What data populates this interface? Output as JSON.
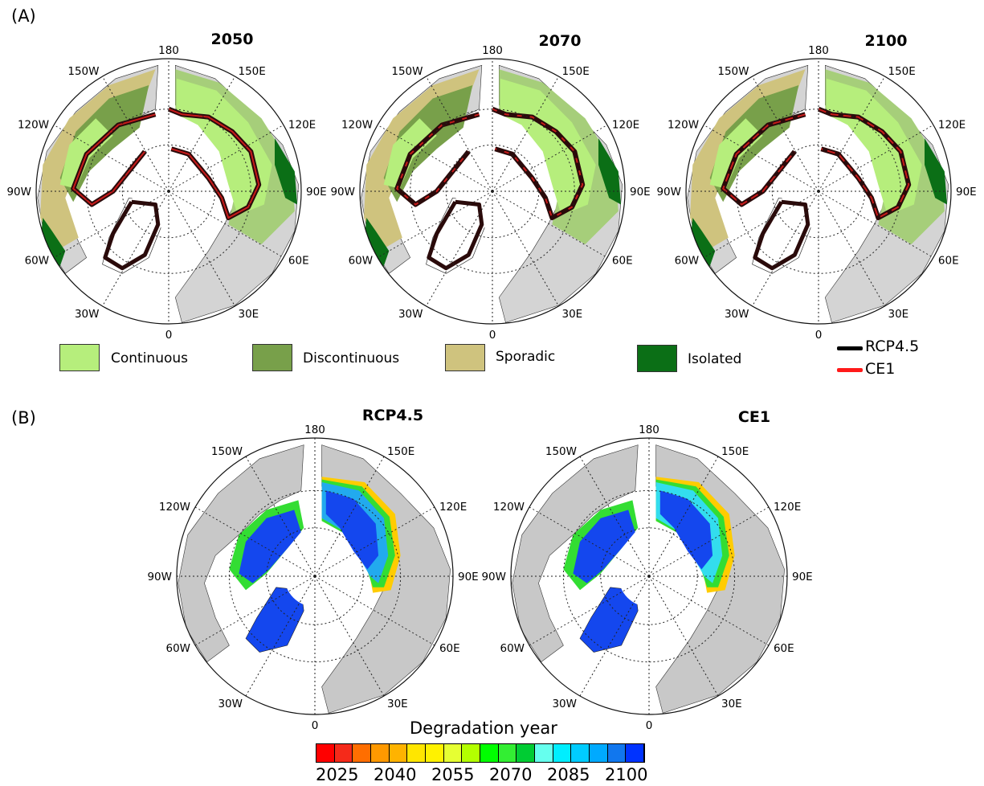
{
  "panel_a": {
    "label": "(A)",
    "maps": [
      {
        "title": "2050"
      },
      {
        "title": "2070"
      },
      {
        "title": "2100"
      }
    ],
    "legend": [
      {
        "label": "Continuous",
        "color": "#b6ee7c"
      },
      {
        "label": "Discontinuous",
        "color": "#78a04a"
      },
      {
        "label": "Sporadic",
        "color": "#cfc37e"
      },
      {
        "label": "Isolated",
        "color": "#0b6f16"
      }
    ],
    "line_legend": [
      {
        "label": "RCP4.5",
        "color": "#000000"
      },
      {
        "label": "CE1",
        "color": "#ff1a1a"
      }
    ]
  },
  "panel_b": {
    "label": "(B)",
    "maps": [
      {
        "title": "RCP4.5"
      },
      {
        "title": "CE1"
      }
    ],
    "colorbar": {
      "title": "Degradation year",
      "ticks": [
        "2025",
        "2040",
        "2055",
        "2070",
        "2085",
        "2100"
      ],
      "colors": [
        "#ff0000",
        "#f52a1a",
        "#ff6e00",
        "#ff9900",
        "#ffb300",
        "#ffe600",
        "#fff200",
        "#e6ff33",
        "#b3ff00",
        "#00ff00",
        "#33ee33",
        "#00cc33",
        "#66ffee",
        "#00eeff",
        "#00ccff",
        "#00aaff",
        "#1177ee",
        "#0033ff"
      ]
    }
  },
  "graticule_labels": {
    "top": "180",
    "bottom": "0",
    "left": "90W",
    "right": "90E",
    "upper_left_1": "150W",
    "upper_left_2": "120W",
    "lower_left_1": "60W",
    "lower_left_2": "30W",
    "upper_right_1": "150E",
    "upper_right_2": "120E",
    "lower_right_1": "60E",
    "lower_right_2": "30E"
  }
}
